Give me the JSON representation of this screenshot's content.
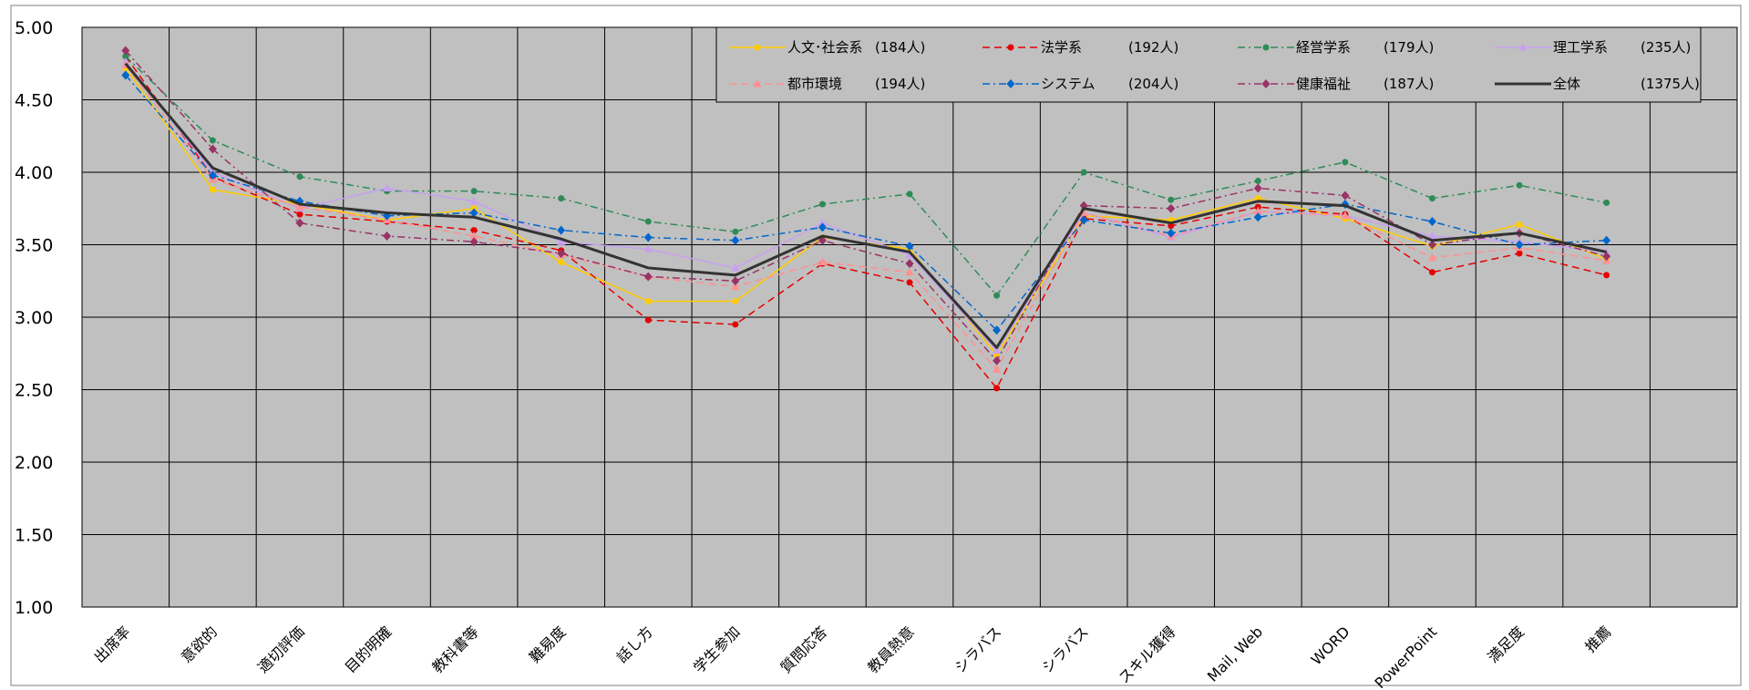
{
  "chart_data": {
    "type": "line",
    "categories": [
      "出席率",
      "意欲的",
      "適切評価",
      "目的明確",
      "教科書等",
      "難易度",
      "話し方",
      "学生参加",
      "質問応答",
      "教員熱意",
      "シラバス",
      "シラバス",
      "スキル獲得",
      "Mail, Web",
      "WORD",
      "PowerPoint",
      "満足度",
      "推薦"
    ],
    "ylim": [
      1.0,
      5.0
    ],
    "yticks": [
      "1.00",
      "1.50",
      "2.00",
      "2.50",
      "3.00",
      "3.50",
      "4.00",
      "4.50",
      "5.00"
    ],
    "grid": true,
    "legend_position": "top-right",
    "series": [
      {
        "name": "人文･社会系",
        "count": "(184人)",
        "color": "#ffcc00",
        "dash": "solid",
        "marker": "circle",
        "width": 1.5,
        "values": [
          4.72,
          3.88,
          3.78,
          3.67,
          3.75,
          3.38,
          3.11,
          3.11,
          3.55,
          3.47,
          2.74,
          3.7,
          3.67,
          3.82,
          3.68,
          3.49,
          3.64,
          3.4
        ]
      },
      {
        "name": "法学系",
        "count": "(192人)",
        "color": "#e60000",
        "dash": "8,5",
        "marker": "circle",
        "width": 1.5,
        "values": [
          4.8,
          3.97,
          3.71,
          3.66,
          3.6,
          3.46,
          2.98,
          2.95,
          3.37,
          3.24,
          2.51,
          3.68,
          3.63,
          3.76,
          3.71,
          3.31,
          3.44,
          3.29
        ]
      },
      {
        "name": "経営学系",
        "count": "(179人)",
        "color": "#2e8b57",
        "dash": "8,4,2,4",
        "marker": "circle",
        "width": 1.5,
        "values": [
          4.8,
          4.22,
          3.97,
          3.87,
          3.87,
          3.82,
          3.66,
          3.59,
          3.78,
          3.85,
          3.15,
          4.0,
          3.81,
          3.94,
          4.07,
          3.82,
          3.91,
          3.79
        ]
      },
      {
        "name": "理工学系",
        "count": "(235人)",
        "color": "#c8a0f0",
        "dash": "solid",
        "marker": "triangle",
        "width": 1.5,
        "values": [
          4.76,
          4.0,
          3.75,
          3.89,
          3.8,
          3.52,
          3.47,
          3.34,
          3.65,
          3.43,
          2.77,
          3.72,
          3.55,
          3.73,
          3.7,
          3.56,
          3.52,
          3.45
        ]
      },
      {
        "name": "都市環境",
        "count": "(194人)",
        "color": "#ff9090",
        "dash": "8,5",
        "marker": "triangle",
        "width": 1.5,
        "values": [
          4.74,
          3.95,
          3.76,
          3.67,
          3.56,
          3.43,
          3.28,
          3.21,
          3.38,
          3.31,
          2.64,
          3.72,
          3.56,
          3.73,
          3.7,
          3.41,
          3.48,
          3.39
        ]
      },
      {
        "name": "システム",
        "count": "(204人)",
        "color": "#0066cc",
        "dash": "8,4,2,4",
        "marker": "diamond",
        "width": 1.5,
        "values": [
          4.67,
          3.98,
          3.8,
          3.7,
          3.72,
          3.6,
          3.55,
          3.53,
          3.62,
          3.49,
          2.91,
          3.67,
          3.58,
          3.69,
          3.78,
          3.66,
          3.5,
          3.53
        ]
      },
      {
        "name": "健康福祉",
        "count": "(187人)",
        "color": "#993366",
        "dash": "8,4,2,4",
        "marker": "diamond",
        "width": 1.5,
        "values": [
          4.84,
          4.16,
          3.65,
          3.56,
          3.52,
          3.44,
          3.28,
          3.25,
          3.53,
          3.37,
          2.7,
          3.77,
          3.75,
          3.89,
          3.84,
          3.5,
          3.58,
          3.42
        ]
      },
      {
        "name": "全体",
        "count": "(1375人)",
        "color": "#333333",
        "dash": "solid",
        "marker": "none",
        "width": 3,
        "values": [
          4.75,
          4.03,
          3.78,
          3.72,
          3.69,
          3.54,
          3.34,
          3.29,
          3.56,
          3.45,
          2.79,
          3.75,
          3.65,
          3.8,
          3.77,
          3.53,
          3.58,
          3.45
        ]
      }
    ]
  }
}
